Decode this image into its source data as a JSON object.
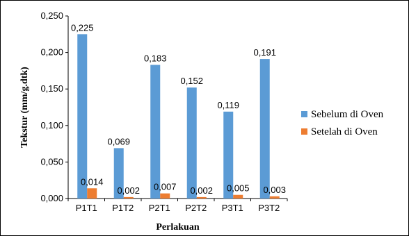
{
  "chart_data": {
    "type": "bar",
    "title": "",
    "xlabel": "Perlakuan",
    "ylabel": "Tekstur (mm/g.dtk)",
    "categories": [
      "P1T1",
      "P1T2",
      "P2T1",
      "P2T2",
      "P3T1",
      "P3T2"
    ],
    "series": [
      {
        "name": "Sebelum di Oven",
        "color": "#5B9BD5",
        "values": [
          0.225,
          0.069,
          0.183,
          0.152,
          0.119,
          0.191
        ],
        "labels": [
          "0,225",
          "0,069",
          "0,183",
          "0,152",
          "0,119",
          "0,191"
        ]
      },
      {
        "name": "Setelah di Oven",
        "color": "#ED7D31",
        "values": [
          0.014,
          0.002,
          0.007,
          0.002,
          0.005,
          0.003
        ],
        "labels": [
          "0,014",
          "0,002",
          "0,007",
          "0,002",
          "0,005",
          "0,003"
        ]
      }
    ],
    "ylim": [
      0,
      0.25
    ],
    "yticks": [
      0,
      0.05,
      0.1,
      0.15,
      0.2,
      0.25
    ],
    "ytick_labels": [
      "0,000",
      "0,050",
      "0,100",
      "0,150",
      "0,200",
      "0,250"
    ],
    "grid": false,
    "legend": "right"
  }
}
